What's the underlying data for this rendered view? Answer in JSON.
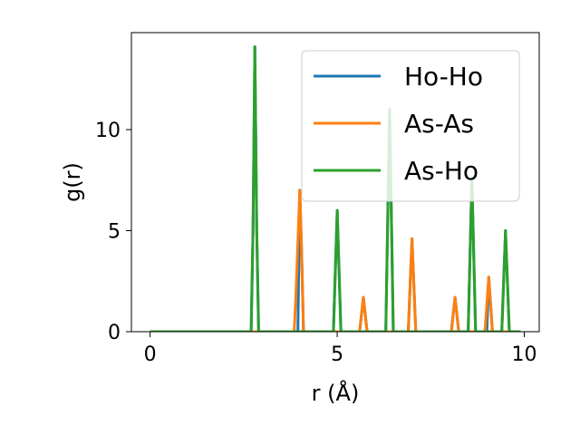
{
  "chart_data": {
    "type": "line",
    "xlabel": "r (Å)",
    "ylabel": "g(r)",
    "xlim": [
      -0.5,
      10.4
    ],
    "ylim": [
      0,
      14.8
    ],
    "xticks": [
      0,
      5,
      10
    ],
    "yticks": [
      0,
      5,
      10
    ],
    "grid": false,
    "legend_position": "top-right",
    "series": [
      {
        "name": "Ho-Ho",
        "color": "#1f77b4",
        "x": [
          0,
          2.7,
          2.75,
          2.8,
          2.85,
          2.9,
          3.0,
          3.95,
          4.0,
          4.05,
          4.1,
          4.9,
          5.0,
          5.1,
          5.6,
          5.7,
          5.8,
          6.3,
          6.4,
          6.5,
          6.9,
          7.0,
          7.1,
          8.05,
          8.15,
          8.25,
          8.5,
          8.6,
          8.7,
          9.0,
          9.05,
          9.15,
          9.4,
          9.5,
          9.6,
          9.9
        ],
        "y": [
          0,
          0,
          5,
          14.1,
          5,
          0,
          0,
          0,
          7.0,
          4.0,
          0,
          0,
          6.0,
          0,
          0,
          1.7,
          0,
          0,
          11.0,
          0,
          0,
          4.6,
          0,
          0,
          1.7,
          0,
          0,
          7.6,
          0,
          0,
          2.7,
          0,
          0,
          5.0,
          0,
          0
        ]
      },
      {
        "name": "As-As",
        "color": "#ff7f0e",
        "x": [
          0,
          3.85,
          3.9,
          4.0,
          4.05,
          4.1,
          5.6,
          5.7,
          5.8,
          6.9,
          7.0,
          7.1,
          8.05,
          8.15,
          8.25,
          8.95,
          9.05,
          9.15,
          9.9
        ],
        "y": [
          0,
          0,
          2.0,
          7.0,
          4.0,
          0,
          0,
          1.7,
          0,
          0,
          4.6,
          0,
          0,
          1.7,
          0,
          0,
          2.7,
          0,
          0
        ]
      },
      {
        "name": "As-Ho",
        "color": "#2ca02c",
        "x": [
          0,
          2.7,
          2.75,
          2.8,
          2.85,
          2.9,
          4.9,
          5.0,
          5.1,
          6.3,
          6.4,
          6.5,
          8.5,
          8.6,
          8.7,
          9.4,
          9.5,
          9.6,
          9.9
        ],
        "y": [
          0,
          0,
          5,
          14.1,
          5,
          0,
          0,
          6.0,
          0,
          0,
          11.0,
          0,
          0,
          7.6,
          0,
          0,
          5.0,
          0,
          0
        ]
      }
    ]
  }
}
